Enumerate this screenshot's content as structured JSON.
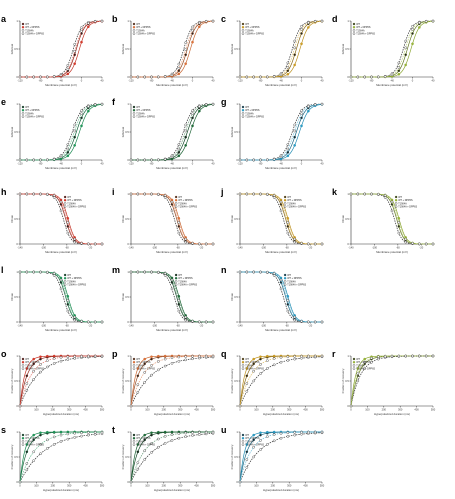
{
  "figure": {
    "row1_xlabel": "Membrane potential (mV)",
    "row1_ylabel": "G/Gmax",
    "row3_xlabel": "Membrane potential (mV)",
    "row3_ylabel": "I/Imax",
    "row5_xlabel": "Hyperpolarized duration (ms)",
    "row5_ylabel": "Fraction of recovery"
  },
  "chart_data": [
    {
      "panel": "a",
      "type": "line",
      "color": "#d93a2b",
      "xlim": [
        -120,
        40
      ],
      "ylim": [
        0,
        1
      ],
      "xticks": [
        -120,
        -80,
        -40,
        0,
        40
      ],
      "legend": [
        "WT",
        "WT + DPP6S",
        "T1904A",
        "T1904A + DPP6S"
      ],
      "series": [
        {
          "name": "WT",
          "v_half": -10,
          "k": 8
        },
        {
          "name": "WT + DPP6S",
          "v_half": -4,
          "k": 8
        },
        {
          "name": "T1904A",
          "v_half": -16,
          "k": 8
        },
        {
          "name": "T1904A + DPP6S",
          "v_half": -12,
          "k": 8
        }
      ]
    },
    {
      "panel": "b",
      "type": "line",
      "color": "#e0733a",
      "xlim": [
        -120,
        40
      ],
      "ylim": [
        0,
        1
      ],
      "xticks": [
        -120,
        -80,
        -40,
        0,
        40
      ],
      "legend": [
        "WT",
        "WT + DPP6S",
        "T1904A",
        "T1904A + DPP6S"
      ],
      "series": [
        {
          "name": "WT",
          "v_half": -10,
          "k": 8
        },
        {
          "name": "WT + DPP6S",
          "v_half": -4,
          "k": 8
        },
        {
          "name": "T1904A",
          "v_half": -17,
          "k": 8
        },
        {
          "name": "T1904A + DPP6S",
          "v_half": -13,
          "k": 8
        }
      ]
    },
    {
      "panel": "c",
      "type": "line",
      "color": "#d1a024",
      "xlim": [
        -120,
        40
      ],
      "ylim": [
        0,
        1
      ],
      "xticks": [
        -120,
        -80,
        -40,
        0,
        40
      ],
      "legend": [
        "WT",
        "WT + DPP6S",
        "T1904A",
        "T1904A + DPP6S"
      ],
      "series": [
        {
          "name": "WT",
          "v_half": -10,
          "k": 8
        },
        {
          "name": "WT + DPP6S",
          "v_half": -3,
          "k": 8
        },
        {
          "name": "T1904A",
          "v_half": -18,
          "k": 8
        },
        {
          "name": "T1904A + DPP6S",
          "v_half": -14,
          "k": 8
        }
      ]
    },
    {
      "panel": "d",
      "type": "line",
      "color": "#9ab838",
      "xlim": [
        -120,
        40
      ],
      "ylim": [
        0,
        1
      ],
      "xticks": [
        -120,
        -80,
        -40,
        0,
        40
      ],
      "legend": [
        "WT",
        "WT + DPP6S",
        "T1904A",
        "T1904A + DPP6S"
      ],
      "series": [
        {
          "name": "WT",
          "v_half": -10,
          "k": 8
        },
        {
          "name": "WT + DPP6S",
          "v_half": -3,
          "k": 8
        },
        {
          "name": "T1904A",
          "v_half": -18,
          "k": 8
        },
        {
          "name": "T1904A + DPP6S",
          "v_half": -14,
          "k": 8
        }
      ]
    },
    {
      "panel": "e",
      "type": "line",
      "color": "#1f9a5b",
      "xlim": [
        -120,
        40
      ],
      "ylim": [
        0,
        1
      ],
      "xticks": [
        -120,
        -80,
        -40,
        0,
        40
      ],
      "legend": [
        "WT",
        "WT + DPP6S",
        "T1904A",
        "T1904A + DPP6S"
      ],
      "series": [
        {
          "name": "WT",
          "v_half": -10,
          "k": 9
        },
        {
          "name": "WT + DPP6S",
          "v_half": -4,
          "k": 9
        },
        {
          "name": "T1904A",
          "v_half": -18,
          "k": 9
        },
        {
          "name": "T1904A + DPP6S",
          "v_half": -14,
          "k": 9
        }
      ]
    },
    {
      "panel": "f",
      "type": "line",
      "color": "#1e6e3a",
      "xlim": [
        -120,
        40
      ],
      "ylim": [
        0,
        1
      ],
      "xticks": [
        -120,
        -80,
        -40,
        0,
        40
      ],
      "legend": [
        "WT",
        "WT + DPP6S",
        "T1904A",
        "T1904A + DPP6S"
      ],
      "series": [
        {
          "name": "WT",
          "v_half": -10,
          "k": 9
        },
        {
          "name": "WT + DPP6S",
          "v_half": -4,
          "k": 9
        },
        {
          "name": "T1904A",
          "v_half": -18,
          "k": 9
        },
        {
          "name": "T1904A + DPP6S",
          "v_half": -14,
          "k": 9
        }
      ]
    },
    {
      "panel": "g",
      "type": "line",
      "color": "#2a9fc9",
      "xlim": [
        -120,
        40
      ],
      "ylim": [
        0,
        1
      ],
      "xticks": [
        -120,
        -80,
        -40,
        0,
        40
      ],
      "legend": [
        "WT",
        "WT + DPP6S",
        "T1904A",
        "T1904A + DPP6S"
      ],
      "series": [
        {
          "name": "WT",
          "v_half": -10,
          "k": 9
        },
        {
          "name": "WT + DPP6S",
          "v_half": -4,
          "k": 9
        },
        {
          "name": "T1904A",
          "v_half": -18,
          "k": 9
        },
        {
          "name": "T1904A + DPP6S",
          "v_half": -14,
          "k": 9
        }
      ]
    },
    {
      "panel": "h",
      "type": "line",
      "color": "#d93a2b",
      "xlim": [
        -140,
        0
      ],
      "ylim": [
        0,
        1
      ],
      "xticks": [
        -140,
        -100,
        -60,
        -20
      ],
      "legend": [
        "WT",
        "WT + DPP6S",
        "T1904A",
        "T1904A + DPP6S"
      ],
      "series": [
        {
          "name": "WT",
          "v_half": -62,
          "k": -6
        },
        {
          "name": "WT + DPP6S",
          "v_half": -58,
          "k": -6
        },
        {
          "name": "T1904A",
          "v_half": -66,
          "k": -6
        },
        {
          "name": "T1904A + DPP6S",
          "v_half": -60,
          "k": -6
        }
      ]
    },
    {
      "panel": "i",
      "type": "line",
      "color": "#e0733a",
      "xlim": [
        -140,
        0
      ],
      "ylim": [
        0,
        1
      ],
      "xticks": [
        -140,
        -100,
        -60,
        -20
      ],
      "legend": [
        "WT",
        "WT + DPP6S",
        "T1904A",
        "T1904A + DPP6S"
      ],
      "series": [
        {
          "name": "WT",
          "v_half": -62,
          "k": -6
        },
        {
          "name": "WT + DPP6S",
          "v_half": -58,
          "k": -6
        },
        {
          "name": "T1904A",
          "v_half": -66,
          "k": -6
        },
        {
          "name": "T1904A + DPP6S",
          "v_half": -60,
          "k": -6
        }
      ]
    },
    {
      "panel": "j",
      "type": "line",
      "color": "#d1a024",
      "xlim": [
        -140,
        0
      ],
      "ylim": [
        0,
        1
      ],
      "xticks": [
        -140,
        -100,
        -60,
        -20
      ],
      "legend": [
        "WT",
        "WT + DPP6S",
        "T1904A",
        "T1904A + DPP6S"
      ],
      "series": [
        {
          "name": "WT",
          "v_half": -62,
          "k": -6
        },
        {
          "name": "WT + DPP6S",
          "v_half": -58,
          "k": -6
        },
        {
          "name": "T1904A",
          "v_half": -66,
          "k": -6
        },
        {
          "name": "T1904A + DPP6S",
          "v_half": -60,
          "k": -6
        }
      ]
    },
    {
      "panel": "k",
      "type": "line",
      "color": "#9ab838",
      "xlim": [
        -140,
        0
      ],
      "ylim": [
        0,
        1
      ],
      "xticks": [
        -140,
        -100,
        -60,
        -20
      ],
      "legend": [
        "WT",
        "WT + DPP6S",
        "T1904A",
        "T1904A + DPP6S"
      ],
      "series": [
        {
          "name": "WT",
          "v_half": -62,
          "k": -6
        },
        {
          "name": "WT + DPP6S",
          "v_half": -58,
          "k": -6
        },
        {
          "name": "T1904A",
          "v_half": -66,
          "k": -6
        },
        {
          "name": "T1904A + DPP6S",
          "v_half": -60,
          "k": -6
        }
      ]
    },
    {
      "panel": "l",
      "type": "line",
      "color": "#1f9a5b",
      "xlim": [
        -140,
        0
      ],
      "ylim": [
        0,
        1
      ],
      "xticks": [
        -140,
        -100,
        -60,
        -20
      ],
      "legend": [
        "WT",
        "WT + DPP6S",
        "T1904A",
        "T1904A + DPP6S"
      ],
      "series": [
        {
          "name": "WT",
          "v_half": -62,
          "k": -6
        },
        {
          "name": "WT + DPP6S",
          "v_half": -58,
          "k": -6
        },
        {
          "name": "T1904A",
          "v_half": -66,
          "k": -6
        },
        {
          "name": "T1904A + DPP6S",
          "v_half": -60,
          "k": -6
        }
      ]
    },
    {
      "panel": "m",
      "type": "line",
      "color": "#1e6e3a",
      "xlim": [
        -140,
        0
      ],
      "ylim": [
        0,
        1
      ],
      "xticks": [
        -140,
        -100,
        -60,
        -20
      ],
      "legend": [
        "WT",
        "WT + DPP6S",
        "T1904A",
        "T1904A + DPP6S"
      ],
      "series": [
        {
          "name": "WT",
          "v_half": -62,
          "k": -6
        },
        {
          "name": "WT + DPP6S",
          "v_half": -58,
          "k": -6
        },
        {
          "name": "T1904A",
          "v_half": -66,
          "k": -6
        },
        {
          "name": "T1904A + DPP6S",
          "v_half": -60,
          "k": -6
        }
      ]
    },
    {
      "panel": "n",
      "type": "line",
      "color": "#2a9fc9",
      "xlim": [
        -140,
        0
      ],
      "ylim": [
        0,
        1
      ],
      "xticks": [
        -140,
        -100,
        -60,
        -20
      ],
      "legend": [
        "WT",
        "WT + DPP6S",
        "T1904A",
        "T1904A + DPP6S"
      ],
      "series": [
        {
          "name": "WT",
          "v_half": -62,
          "k": -6
        },
        {
          "name": "WT + DPP6S",
          "v_half": -58,
          "k": -6
        },
        {
          "name": "T1904A",
          "v_half": -66,
          "k": -6
        },
        {
          "name": "T1904A + DPP6S",
          "v_half": -60,
          "k": -6
        }
      ]
    },
    {
      "panel": "o",
      "type": "line",
      "color": "#d93a2b",
      "xlim": [
        0,
        500
      ],
      "ylim": [
        0,
        1
      ],
      "xticks": [
        0,
        100,
        200,
        300,
        400,
        500
      ],
      "legend": [
        "WT",
        "WT + DPP6S",
        "T1904A",
        "T1904A + DPP6S"
      ],
      "series": [
        {
          "name": "WT",
          "tau": 45
        },
        {
          "name": "WT + DPP6S",
          "tau": 30
        },
        {
          "name": "T1904A",
          "tau": 110
        },
        {
          "name": "T1904A + DPP6S",
          "tau": 70
        }
      ]
    },
    {
      "panel": "p",
      "type": "line",
      "color": "#e0733a",
      "xlim": [
        0,
        500
      ],
      "ylim": [
        0,
        1
      ],
      "xticks": [
        0,
        100,
        200,
        300,
        400,
        500
      ],
      "legend": [
        "WT",
        "WT + DPP6S",
        "T1904A",
        "T1904A + DPP6S"
      ],
      "series": [
        {
          "name": "WT",
          "tau": 45
        },
        {
          "name": "WT + DPP6S",
          "tau": 30
        },
        {
          "name": "T1904A",
          "tau": 130
        },
        {
          "name": "T1904A + DPP6S",
          "tau": 75
        }
      ]
    },
    {
      "panel": "q",
      "type": "line",
      "color": "#d1a024",
      "xlim": [
        0,
        500
      ],
      "ylim": [
        0,
        1
      ],
      "xticks": [
        0,
        100,
        200,
        300,
        400,
        500
      ],
      "legend": [
        "WT",
        "WT + DPP6S",
        "T1904A",
        "T1904A + DPP6S"
      ],
      "series": [
        {
          "name": "WT",
          "tau": 45
        },
        {
          "name": "WT + DPP6S",
          "tau": 30
        },
        {
          "name": "T1904A",
          "tau": 120
        },
        {
          "name": "T1904A + DPP6S",
          "tau": 70
        }
      ]
    },
    {
      "panel": "r",
      "type": "line",
      "color": "#9ab838",
      "xlim": [
        0,
        500
      ],
      "ylim": [
        0,
        1
      ],
      "xticks": [
        0,
        100,
        200,
        300,
        400,
        500
      ],
      "legend": [
        "WT",
        "WT + DPP6S",
        "T1904A",
        "T1904A + DPP6S"
      ],
      "series": [
        {
          "name": "WT",
          "tau": 45
        },
        {
          "name": "WT + DPP6S",
          "tau": 30
        },
        {
          "name": "T1904A",
          "tau": 60
        },
        {
          "name": "T1904A + DPP6S",
          "tau": 40
        }
      ]
    },
    {
      "panel": "s",
      "type": "line",
      "color": "#1f9a5b",
      "xlim": [
        0,
        500
      ],
      "ylim": [
        0,
        1
      ],
      "xticks": [
        0,
        100,
        200,
        300,
        400,
        500
      ],
      "legend": [
        "WT",
        "WT + DPP6S",
        "T1904A",
        "T1904A + DPP6S"
      ],
      "series": [
        {
          "name": "WT",
          "tau": 45
        },
        {
          "name": "WT + DPP6S",
          "tau": 30
        },
        {
          "name": "T1904A",
          "tau": 150
        },
        {
          "name": "T1904A + DPP6S",
          "tau": 90
        }
      ]
    },
    {
      "panel": "t",
      "type": "line",
      "color": "#1e6e3a",
      "xlim": [
        0,
        500
      ],
      "ylim": [
        0,
        1
      ],
      "xticks": [
        0,
        100,
        200,
        300,
        400,
        500
      ],
      "legend": [
        "WT",
        "WT + DPP6S",
        "T1904A",
        "T1904A + DPP6S"
      ],
      "series": [
        {
          "name": "WT",
          "tau": 45
        },
        {
          "name": "WT + DPP6S",
          "tau": 30
        },
        {
          "name": "T1904A",
          "tau": 140
        },
        {
          "name": "T1904A + DPP6S",
          "tau": 85
        }
      ]
    },
    {
      "panel": "u",
      "type": "line",
      "color": "#2a9fc9",
      "xlim": [
        0,
        500
      ],
      "ylim": [
        0,
        1
      ],
      "xticks": [
        0,
        100,
        200,
        300,
        400,
        500
      ],
      "legend": [
        "WT",
        "WT + DPP6S",
        "T1904A",
        "T1904A + DPP6S"
      ],
      "series": [
        {
          "name": "WT",
          "tau": 45
        },
        {
          "name": "WT + DPP6S",
          "tau": 30
        },
        {
          "name": "T1904A",
          "tau": 120
        },
        {
          "name": "T1904A + DPP6S",
          "tau": 70
        }
      ]
    }
  ]
}
